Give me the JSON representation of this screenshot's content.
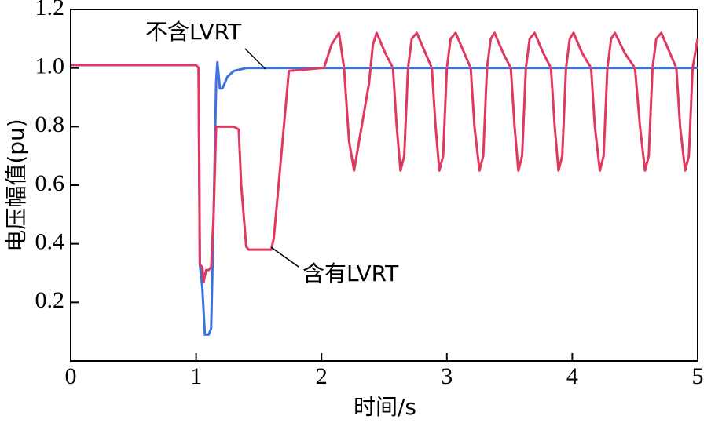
{
  "chart_data": {
    "type": "line",
    "xlabel": "时间/s",
    "ylabel": "电压幅值(pu)",
    "xlim": [
      0,
      5
    ],
    "ylim": [
      0,
      1.2
    ],
    "xticks": [
      0,
      1,
      2,
      3,
      4,
      5
    ],
    "yticks": [
      0.2,
      0.4,
      0.6,
      0.8,
      {
        "value": 1,
        "label": "1.0"
      },
      1.2
    ],
    "series": [
      {
        "name": "不含LVRT",
        "color": "#3a72e0",
        "x": [
          0,
          1.0,
          1.02,
          1.03,
          1.05,
          1.07,
          1.1,
          1.12,
          1.14,
          1.16,
          1.17,
          1.19,
          1.21,
          1.25,
          1.3,
          1.4,
          1.6,
          2.0,
          3.0,
          4.0,
          5.0
        ],
        "values": [
          1.01,
          1.01,
          1.0,
          0.33,
          0.25,
          0.09,
          0.09,
          0.11,
          0.5,
          0.95,
          1.02,
          0.93,
          0.93,
          0.97,
          0.99,
          1.0,
          1.0,
          1.0,
          1.0,
          1.0,
          1.0
        ]
      },
      {
        "name": "含有LVRT",
        "color": "#e0395f",
        "x": [
          0,
          1.0,
          1.02,
          1.03,
          1.05,
          1.06,
          1.08,
          1.1,
          1.12,
          1.14,
          1.16,
          1.18,
          1.3,
          1.34,
          1.36,
          1.4,
          1.42,
          1.6,
          1.62,
          1.7,
          1.74,
          2.0,
          2.02,
          2.08,
          2.14,
          2.18,
          2.22,
          2.26,
          2.32,
          2.38,
          2.41,
          2.44,
          2.51,
          2.57,
          2.6,
          2.63,
          2.66,
          2.69,
          2.72,
          2.76,
          2.83,
          2.88,
          2.91,
          2.94,
          2.97,
          3.0,
          3.03,
          3.07,
          3.14,
          3.19,
          3.22,
          3.26,
          3.29,
          3.32,
          3.35,
          3.38,
          3.45,
          3.51,
          3.54,
          3.57,
          3.6,
          3.63,
          3.66,
          3.7,
          3.77,
          3.83,
          3.86,
          3.89,
          3.92,
          3.95,
          3.98,
          4.01,
          4.08,
          4.15,
          4.18,
          4.22,
          4.25,
          4.28,
          4.31,
          4.34,
          4.42,
          4.5,
          4.54,
          4.58,
          4.61,
          4.64,
          4.67,
          4.71,
          4.78,
          4.83,
          4.86,
          4.9,
          4.93,
          4.96,
          5.0
        ],
        "values": [
          1.01,
          1.01,
          1.0,
          0.33,
          0.32,
          0.27,
          0.31,
          0.31,
          0.32,
          0.5,
          0.8,
          0.8,
          0.8,
          0.79,
          0.6,
          0.39,
          0.38,
          0.38,
          0.42,
          0.8,
          0.99,
          1.0,
          1.0,
          1.08,
          1.12,
          1.0,
          0.75,
          0.65,
          0.8,
          0.95,
          1.08,
          1.12,
          1.05,
          1.0,
          0.8,
          0.65,
          0.7,
          1.0,
          1.1,
          1.12,
          1.05,
          1.0,
          0.8,
          0.65,
          0.7,
          1.0,
          1.1,
          1.12,
          1.05,
          1.0,
          0.8,
          0.65,
          0.7,
          1.0,
          1.1,
          1.12,
          1.05,
          1.0,
          0.8,
          0.65,
          0.7,
          1.0,
          1.1,
          1.12,
          1.05,
          1.0,
          0.8,
          0.65,
          0.7,
          1.0,
          1.1,
          1.12,
          1.05,
          1.0,
          0.8,
          0.65,
          0.7,
          1.0,
          1.1,
          1.12,
          1.05,
          1.0,
          0.8,
          0.65,
          0.7,
          1.0,
          1.1,
          1.12,
          1.05,
          1.0,
          0.8,
          0.65,
          0.7,
          1.0,
          1.1
        ]
      }
    ]
  }
}
